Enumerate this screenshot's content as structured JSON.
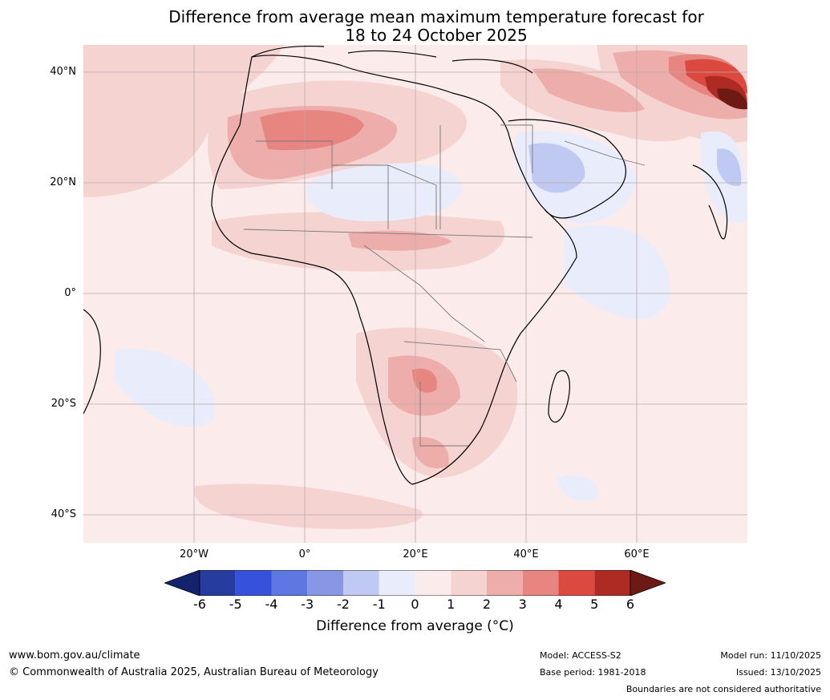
{
  "title": {
    "line1": "Difference from average mean maximum temperature forecast for",
    "line2": "18 to 24 October 2025"
  },
  "map": {
    "lat_labels": [
      "40°N",
      "20°N",
      "0°",
      "20°S",
      "40°S"
    ],
    "lon_labels": [
      "20°W",
      "0°",
      "20°E",
      "40°E",
      "60°E"
    ],
    "anomaly_regions": [
      {
        "name": "north-west-africa-warm",
        "value": 3
      },
      {
        "name": "sahara-cool",
        "value": -1
      },
      {
        "name": "arabia-cool",
        "value": -2
      },
      {
        "name": "central-asia-warm",
        "value": 6
      },
      {
        "name": "southern-africa-warm",
        "value": 3
      }
    ]
  },
  "colorbar": {
    "ticks": [
      "-6",
      "-5",
      "-4",
      "-3",
      "-2",
      "-1",
      "0",
      "1",
      "2",
      "3",
      "4",
      "5",
      "6"
    ],
    "colors": [
      "#14236e",
      "#263c9e",
      "#3651dc",
      "#5f77e0",
      "#8797e6",
      "#c0c9f2",
      "#e9ecfb",
      "#fbeceb",
      "#f5d3d1",
      "#edaeab",
      "#e78681",
      "#dc4a3f",
      "#ad2b22",
      "#6e1a14"
    ],
    "label": "Difference from average (°C)"
  },
  "footer": {
    "url": "www.bom.gov.au/climate",
    "copyright": "© Commonwealth of Australia 2025, Australian Bureau of Meteorology",
    "model": "Model: ACCESS-S2",
    "base_period": "Base period: 1981-2018",
    "model_run": "Model run: 11/10/2025",
    "issued": "Issued: 13/10/2025",
    "disclaimer": "Boundaries are not considered authoritative"
  }
}
